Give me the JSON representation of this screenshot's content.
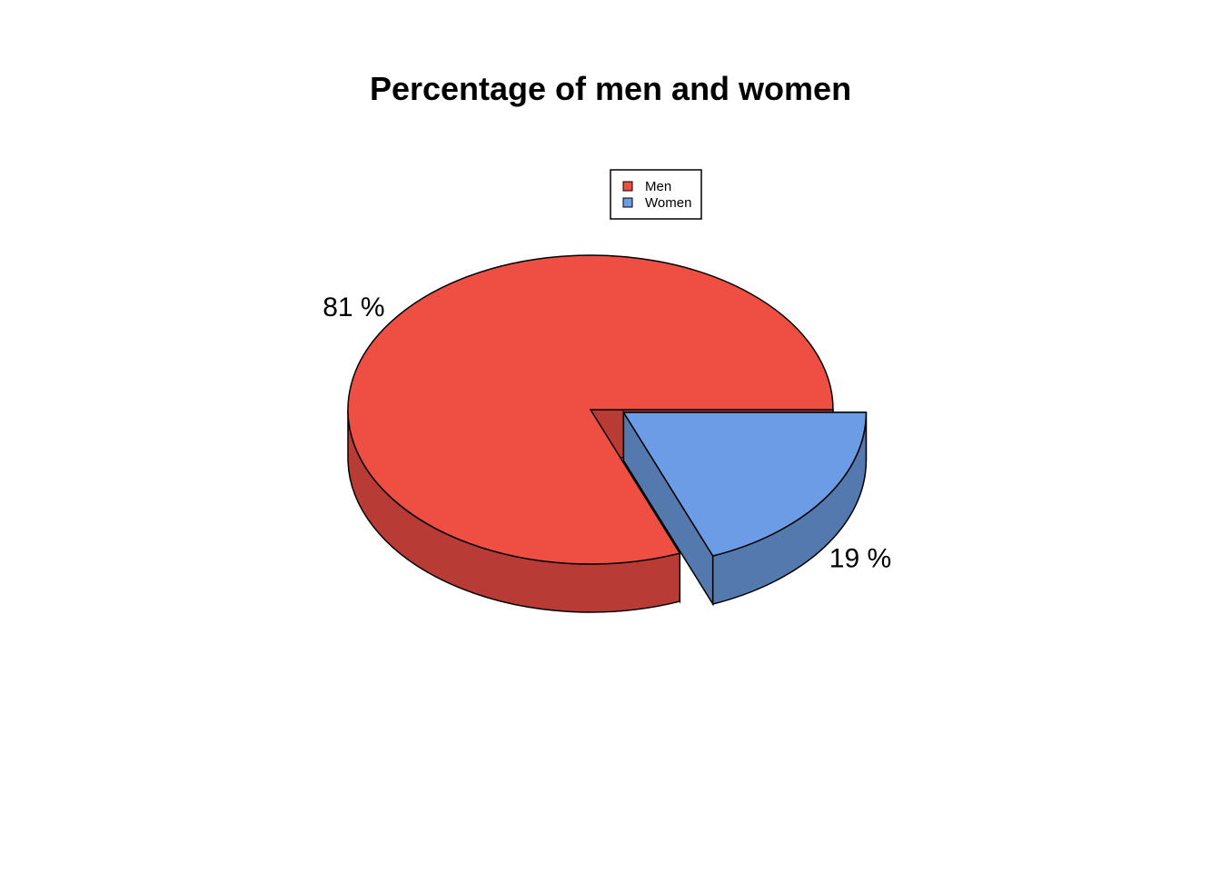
{
  "chart_data": {
    "type": "pie",
    "title": "Percentage of men and women",
    "style": "3d-exploded",
    "categories": [
      "Men",
      "Women"
    ],
    "values": [
      81,
      19
    ],
    "labels": [
      "81 %",
      "19 %"
    ],
    "exploded": [
      "Women"
    ],
    "colors": [
      "#EF4F43",
      "#6B9CE5"
    ],
    "side_colors": [
      "#B83C35",
      "#5479AE"
    ],
    "legend": {
      "position": "top-center",
      "entries": [
        "Men",
        "Women"
      ]
    }
  }
}
